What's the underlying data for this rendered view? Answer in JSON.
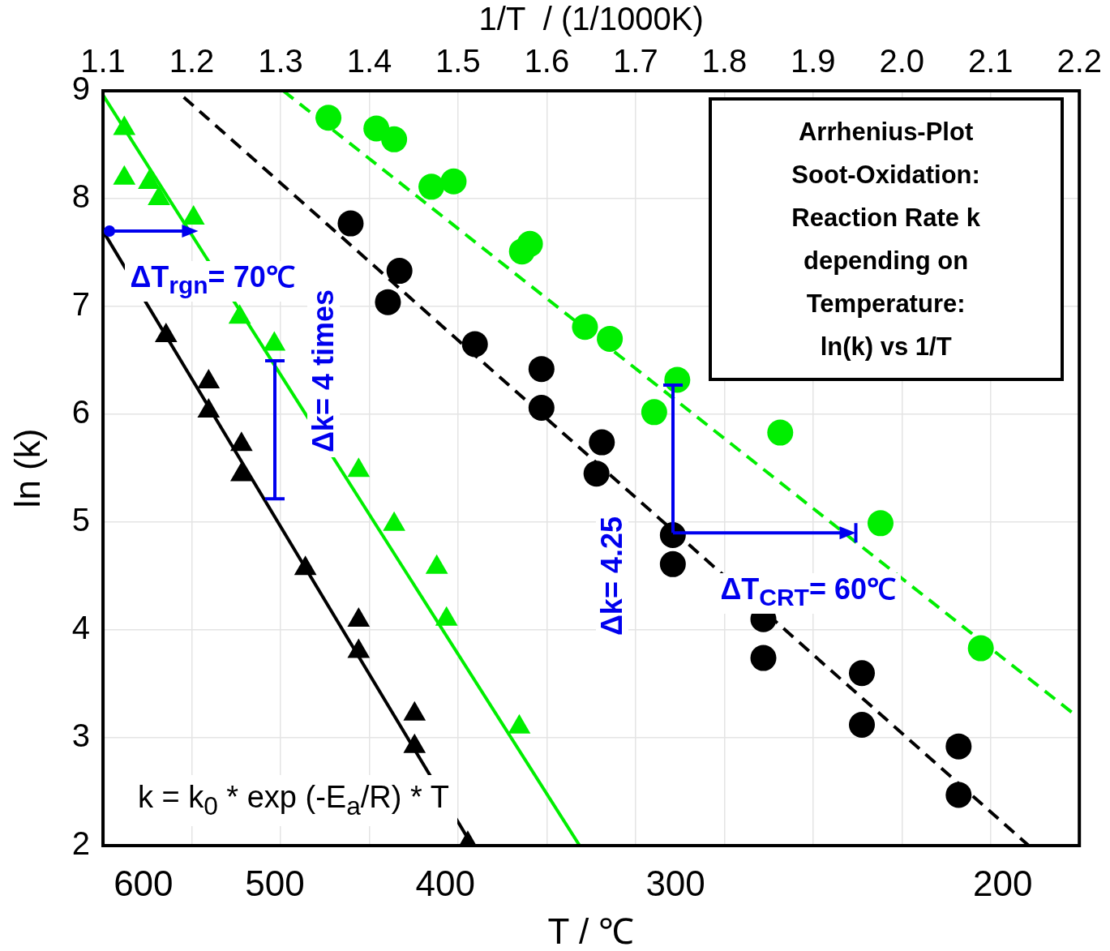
{
  "chart_data": {
    "type": "scatter",
    "xlabel": "1/T  / (1/1000K)",
    "ylabel": "ln (k)",
    "xlim": [
      1.1,
      2.2
    ],
    "xticks": [
      1.1,
      1.2,
      1.3,
      1.4,
      1.5,
      1.6,
      1.7,
      1.8,
      1.9,
      {
        "value": 2,
        "label": "2.0"
      },
      2.1,
      2.2
    ],
    "ylim": [
      2,
      9
    ],
    "yticks": [
      2,
      3,
      4,
      5,
      6,
      7,
      8,
      9
    ],
    "grid": true,
    "legend": false,
    "series": [
      {
        "marker": "circle",
        "color": "#00ee00",
        "x": [
          1.354,
          1.408,
          1.428,
          1.47,
          1.495,
          1.572,
          1.581,
          1.643,
          1.671,
          1.721,
          1.747,
          1.863,
          1.976,
          2.089
        ],
        "values": [
          8.75,
          8.65,
          8.55,
          8.11,
          8.16,
          7.51,
          7.58,
          6.81,
          6.7,
          6.02,
          6.32,
          5.83,
          4.99,
          3.83
        ]
      },
      {
        "marker": "circle",
        "color": "#000000",
        "x": [
          1.379,
          1.434,
          1.421,
          1.519,
          1.594,
          1.594,
          1.662,
          1.656,
          1.742,
          1.742,
          1.844,
          1.844,
          1.955,
          1.955,
          2.064,
          2.064
        ],
        "values": [
          7.77,
          7.33,
          7.04,
          6.65,
          6.42,
          6.06,
          5.74,
          5.45,
          4.88,
          4.61,
          4.1,
          3.74,
          3.6,
          3.12,
          2.92,
          2.47
        ]
      },
      {
        "marker": "triangle",
        "color": "#00ee00",
        "x": [
          1.124,
          1.124,
          1.152,
          1.163,
          1.202,
          1.254,
          1.293,
          1.388,
          1.428,
          1.476,
          1.487,
          1.569
        ],
        "values": [
          8.65,
          8.19,
          8.15,
          8.0,
          7.82,
          6.9,
          6.65,
          5.48,
          4.98,
          4.58,
          4.1,
          3.1
        ]
      },
      {
        "marker": "triangle",
        "color": "#000000",
        "x": [
          1.171,
          1.219,
          1.219,
          1.256,
          1.256,
          1.328,
          1.388,
          1.388,
          1.451,
          1.451,
          1.511
        ],
        "values": [
          6.73,
          6.3,
          6.03,
          5.72,
          5.44,
          4.57,
          4.09,
          3.8,
          3.22,
          2.92,
          2.02
        ]
      },
      {
        "type": "line",
        "marker": "none",
        "line_style": "dashed",
        "color": "#00ee00",
        "x": [
          1.303,
          2.194
        ],
        "values": [
          9.0,
          3.22
        ]
      },
      {
        "type": "line",
        "marker": "none",
        "line_style": "dashed",
        "color": "#000000",
        "x": [
          1.191,
          2.143
        ],
        "values": [
          8.94,
          2.0
        ]
      },
      {
        "type": "line",
        "marker": "none",
        "line_style": "solid",
        "color": "#00ee00",
        "x": [
          1.1,
          1.637
        ],
        "values": [
          8.96,
          2.0
        ]
      },
      {
        "type": "line",
        "marker": "none",
        "line_style": "solid",
        "color": "#000000",
        "x": [
          1.1,
          1.516
        ],
        "values": [
          7.7,
          2.0
        ]
      }
    ],
    "annotations": [
      "Arrhenius-Plot\nSoot-Oxidation:\nReaction Rate k\ndepending on\nTemperature:\nln(k) vs 1/T",
      "k = k$_{0}$ * exp (-E$_{a}$/R) * T",
      "ΔT$_{rgn}$= 70℃",
      "Δk= 4 times",
      "Δk= 4.25",
      "ΔT$_{CRT}$= 60℃",
      "600",
      "500",
      "400",
      "300",
      "200",
      "T / ℃"
    ]
  }
}
